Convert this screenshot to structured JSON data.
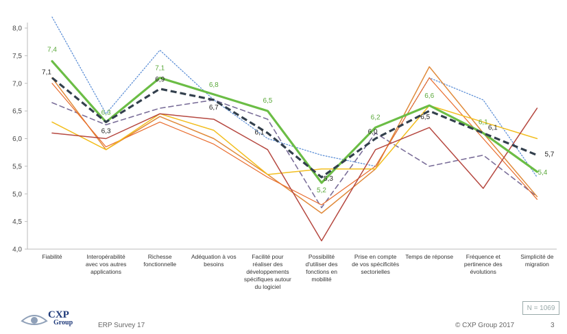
{
  "chart_data": {
    "type": "line",
    "title": "",
    "xlabel": "",
    "ylabel": "",
    "ylim": [
      4.0,
      8.0
    ],
    "yticks": [
      "4,0",
      "4,5",
      "5,0",
      "5,5",
      "6,0",
      "6,5",
      "7,0",
      "7,5",
      "8,0"
    ],
    "grid": false,
    "categories": [
      [
        "Fiabilité"
      ],
      [
        "Interopérabilité",
        "avec vos autres",
        "applications"
      ],
      [
        "Richesse",
        "fonctionnelle"
      ],
      [
        "Adéquation à vos",
        "besoins"
      ],
      [
        "Facilité pour",
        "réaliser des",
        "développements",
        "spécifiques autour",
        "du logiciel"
      ],
      [
        "Possibilité",
        "d'utiliser des",
        "fonctions en",
        "mobilité"
      ],
      [
        "Prise en compte",
        "de vos spécificités",
        "sectorielles"
      ],
      [
        "Temps de réponse"
      ],
      [
        "Fréquence et",
        "pertinence des",
        "évolutions"
      ],
      [
        "Simplicité de",
        "migration"
      ]
    ],
    "series": [
      {
        "color": "#5b8ed6",
        "style": "dotted",
        "width": 1.3,
        "values": [
          8.2,
          6.45,
          7.6,
          6.7,
          6.0,
          5.7,
          5.5,
          7.1,
          6.7,
          5.3
        ]
      },
      {
        "color": "#7a6e99",
        "style": "dashed",
        "width": 1.6,
        "values": [
          6.65,
          6.25,
          6.55,
          6.7,
          6.35,
          4.75,
          6.1,
          5.5,
          5.7,
          4.95
        ]
      },
      {
        "color": "#e08a3a",
        "style": "solid",
        "width": 1.5,
        "values": [
          7.1,
          5.8,
          6.4,
          6.0,
          5.35,
          4.65,
          5.45,
          7.3,
          6.1,
          4.95
        ]
      },
      {
        "color": "#e86a2a",
        "style": "solid",
        "width": 1.2,
        "values": [
          7.0,
          5.85,
          6.3,
          5.9,
          5.3,
          4.8,
          5.5,
          7.1,
          6.0,
          4.9
        ]
      },
      {
        "color": "#f2be1e",
        "style": "solid",
        "width": 1.5,
        "values": [
          6.3,
          5.8,
          6.45,
          6.15,
          5.35,
          5.45,
          5.45,
          6.6,
          6.3,
          6.0
        ]
      },
      {
        "color": "#b5473f",
        "style": "solid",
        "width": 1.5,
        "values": [
          6.1,
          6.0,
          6.45,
          6.35,
          5.8,
          4.15,
          5.8,
          6.2,
          5.1,
          6.55
        ]
      },
      {
        "color": "#6bbd45",
        "style": "solid",
        "width": 3.2,
        "values": [
          7.4,
          6.3,
          7.1,
          6.8,
          6.5,
          5.2,
          6.2,
          6.6,
          6.1,
          5.4
        ],
        "labels": [
          "7,4",
          "6,3",
          "7,1",
          "6,8",
          "6,5",
          "5,2",
          "6,2",
          "6,6",
          "6,1",
          "5,4"
        ]
      },
      {
        "color": "#33404d",
        "style": "bolddash",
        "width": 3.2,
        "values": [
          7.1,
          6.3,
          6.9,
          6.7,
          6.1,
          5.3,
          6.0,
          6.5,
          6.1,
          5.7
        ],
        "labels": [
          "7,1",
          "6,3",
          "6,9",
          "6,7",
          "6,1",
          "5,3",
          "6,0",
          "6,5",
          "6,1",
          "5,7"
        ]
      }
    ]
  },
  "n_label": "N = 1069",
  "footer": {
    "survey": "ERP Survey 17",
    "copyright": "© CXP Group 2017",
    "page": "3",
    "logo_main": "CXP",
    "logo_sub": "Group"
  }
}
